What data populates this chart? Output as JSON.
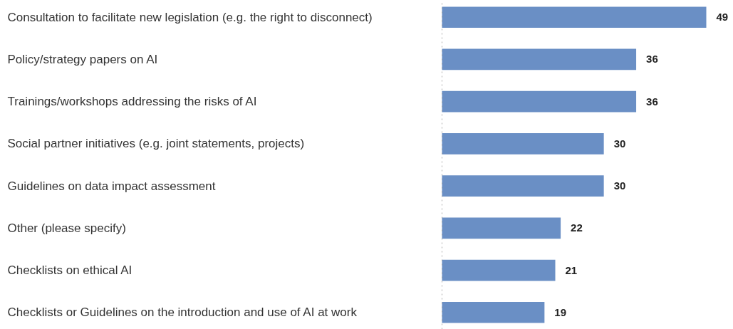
{
  "chart_data": {
    "type": "bar",
    "orientation": "horizontal",
    "categories": [
      "Consultation to facilitate new legislation (e.g. the right to disconnect)",
      "Policy/strategy papers on AI",
      "Trainings/workshops addressing the risks of AI",
      "Social partner initiatives (e.g. joint statements, projects)",
      "Guidelines on data impact assessment",
      "Other (please specify)",
      "Checklists on ethical AI",
      "Checklists or Guidelines on the introduction and use of AI at work"
    ],
    "values": [
      49,
      36,
      36,
      30,
      30,
      22,
      21,
      19
    ],
    "color": "#6a8fc5",
    "data_labels": true
  }
}
